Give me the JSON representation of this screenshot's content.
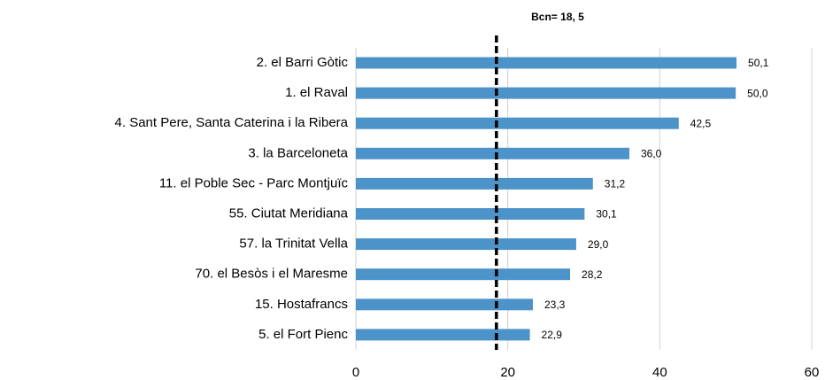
{
  "chart_data": {
    "type": "bar",
    "orientation": "horizontal",
    "categories": [
      "2. el Barri Gòtic",
      "1. el Raval",
      "4. Sant Pere, Santa Caterina i la Ribera",
      "3. la Barceloneta",
      "11. el Poble Sec - Parc Montjuïc",
      "55. Ciutat Meridiana",
      "57. la Trinitat Vella",
      "70. el Besòs i el Maresme",
      "15. Hostafrancs",
      "5. el Fort Pienc"
    ],
    "values": [
      50.1,
      50.0,
      42.5,
      36.0,
      31.2,
      30.1,
      29.0,
      28.2,
      23.3,
      22.9
    ],
    "value_labels": [
      "50,1",
      "50,0",
      "42,5",
      "36,0",
      "31,2",
      "30,1",
      "29,0",
      "28,2",
      "23,3",
      "22,9"
    ],
    "color": "#4b93c8",
    "xlim": [
      0,
      60
    ],
    "xticks": [
      0,
      20,
      40,
      60
    ],
    "grid": true,
    "reference": {
      "value": 18.5,
      "label": "Bcn= 18, 5"
    }
  }
}
